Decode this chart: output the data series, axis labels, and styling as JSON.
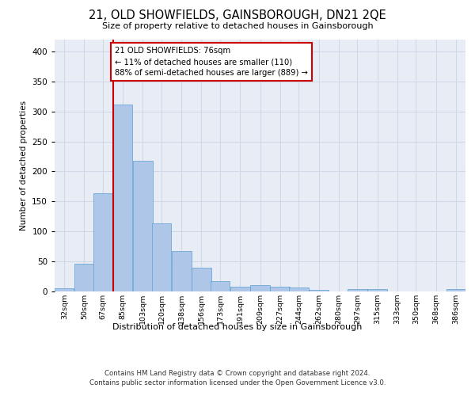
{
  "title": "21, OLD SHOWFIELDS, GAINSBOROUGH, DN21 2QE",
  "subtitle": "Size of property relative to detached houses in Gainsborough",
  "xlabel": "Distribution of detached houses by size in Gainsborough",
  "ylabel": "Number of detached properties",
  "footer_line1": "Contains HM Land Registry data © Crown copyright and database right 2024.",
  "footer_line2": "Contains public sector information licensed under the Open Government Licence v3.0.",
  "bar_labels": [
    "32sqm",
    "50sqm",
    "67sqm",
    "85sqm",
    "103sqm",
    "120sqm",
    "138sqm",
    "156sqm",
    "173sqm",
    "191sqm",
    "209sqm",
    "227sqm",
    "244sqm",
    "262sqm",
    "280sqm",
    "297sqm",
    "315sqm",
    "333sqm",
    "350sqm",
    "368sqm",
    "386sqm"
  ],
  "bar_values": [
    5,
    46,
    163,
    311,
    217,
    113,
    67,
    39,
    16,
    7,
    10,
    7,
    6,
    2,
    0,
    3,
    3,
    0,
    0,
    0,
    3
  ],
  "bar_color": "#aec6e8",
  "bar_edgecolor": "#5a9fd4",
  "grid_color": "#d0d8e8",
  "background_color": "#e8edf5",
  "annotation_text": "21 OLD SHOWFIELDS: 76sqm\n← 11% of detached houses are smaller (110)\n88% of semi-detached houses are larger (889) →",
  "annotation_box_edgecolor": "#cc0000",
  "annotation_box_facecolor": "#ffffff",
  "vline_x": 76,
  "vline_color": "#cc0000",
  "bin_width": 17.5,
  "ylim": [
    0,
    420
  ],
  "yticks": [
    0,
    50,
    100,
    150,
    200,
    250,
    300,
    350,
    400
  ],
  "centers": [
    32,
    50,
    67,
    85,
    103,
    120,
    138,
    156,
    173,
    191,
    209,
    227,
    244,
    262,
    280,
    297,
    315,
    333,
    350,
    368,
    386
  ]
}
